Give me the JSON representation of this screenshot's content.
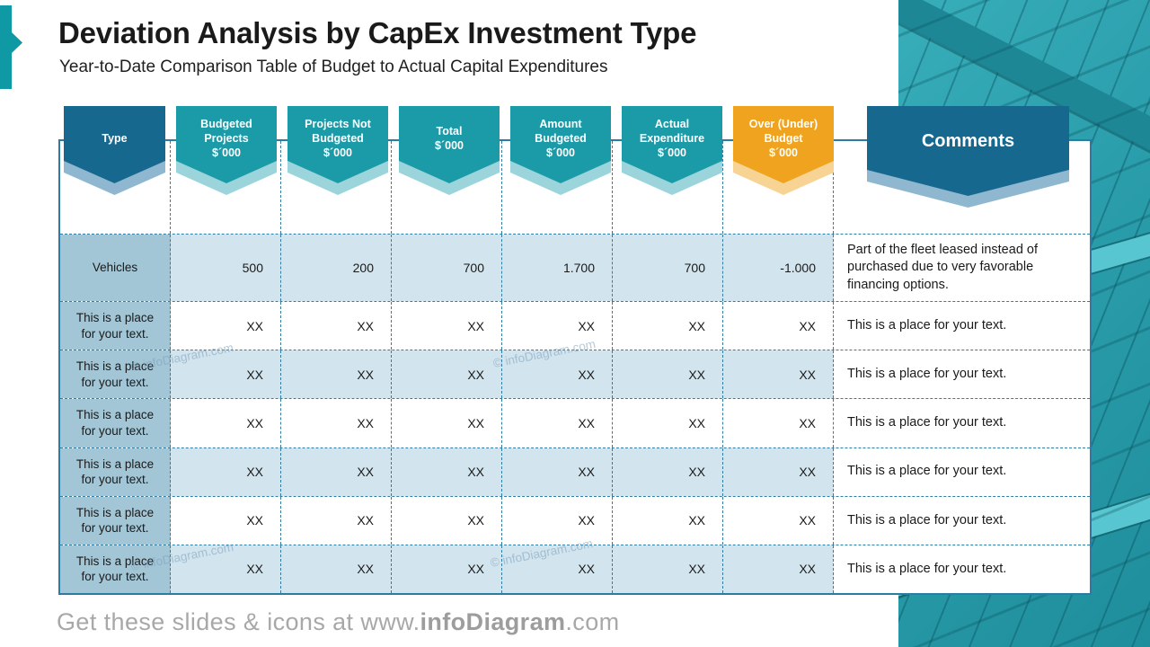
{
  "slide": {
    "title": "Deviation Analysis by CapEx Investment Type",
    "subtitle": "Year-to-Date Comparison Table of Budget to Actual Capital Expenditures",
    "watermark": "© infoDiagram.com",
    "footer": {
      "prefix": "Get these slides & icons at www.",
      "brand": "infoDiagram",
      "suffix": ".com"
    }
  },
  "colors": {
    "header_dark_blue": "#16688e",
    "header_teal": "#1b9aa8",
    "header_orange": "#efa31e",
    "shadow_blue": "#8fb7cf",
    "shadow_teal": "#9bd5db",
    "shadow_orange": "#f7d394",
    "table_border": "#2b7ba2",
    "dashed_grid": "#2e7ea6",
    "type_column_bg": "#a3c6d6",
    "row_blue_bg": "#d2e4ed",
    "accent_teal": "#0f99a4",
    "photo_teal": "#2a9dab",
    "footer_gray": "#a8a8a8"
  },
  "table": {
    "headers": [
      {
        "label": "Type"
      },
      {
        "label": "Budgeted\nProjects\n$´000"
      },
      {
        "label": "Projects Not\nBudgeted\n$´000"
      },
      {
        "label": "Total\n$´000"
      },
      {
        "label": "Amount\nBudgeted\n$´000"
      },
      {
        "label": "Actual\nExpenditure\n$´000"
      },
      {
        "label": "Over (Under)\nBudget\n$´000"
      },
      {
        "label": "Comments"
      }
    ],
    "rows": [
      {
        "type": "Vehicles",
        "values": [
          "500",
          "200",
          "700",
          "1.700",
          "700",
          "-1.000"
        ],
        "comment": "Part of the fleet leased instead of purchased due to very favorable financing options."
      },
      {
        "type": "This is a place for your text.",
        "values": [
          "XX",
          "XX",
          "XX",
          "XX",
          "XX",
          "XX"
        ],
        "comment": "This is a place for your text."
      },
      {
        "type": "This is a place for your text.",
        "values": [
          "XX",
          "XX",
          "XX",
          "XX",
          "XX",
          "XX"
        ],
        "comment": "This is a place for your text."
      },
      {
        "type": "This is a place for your text.",
        "values": [
          "XX",
          "XX",
          "XX",
          "XX",
          "XX",
          "XX"
        ],
        "comment": "This is a place for your text."
      },
      {
        "type": "This is a place for your text.",
        "values": [
          "XX",
          "XX",
          "XX",
          "XX",
          "XX",
          "XX"
        ],
        "comment": "This is a place for your text."
      },
      {
        "type": "This is a place for your text.",
        "values": [
          "XX",
          "XX",
          "XX",
          "XX",
          "XX",
          "XX"
        ],
        "comment": "This is a place for your text."
      },
      {
        "type": "This is a place for your text.",
        "values": [
          "XX",
          "XX",
          "XX",
          "XX",
          "XX",
          "XX"
        ],
        "comment": "This is a place for your text."
      }
    ]
  }
}
